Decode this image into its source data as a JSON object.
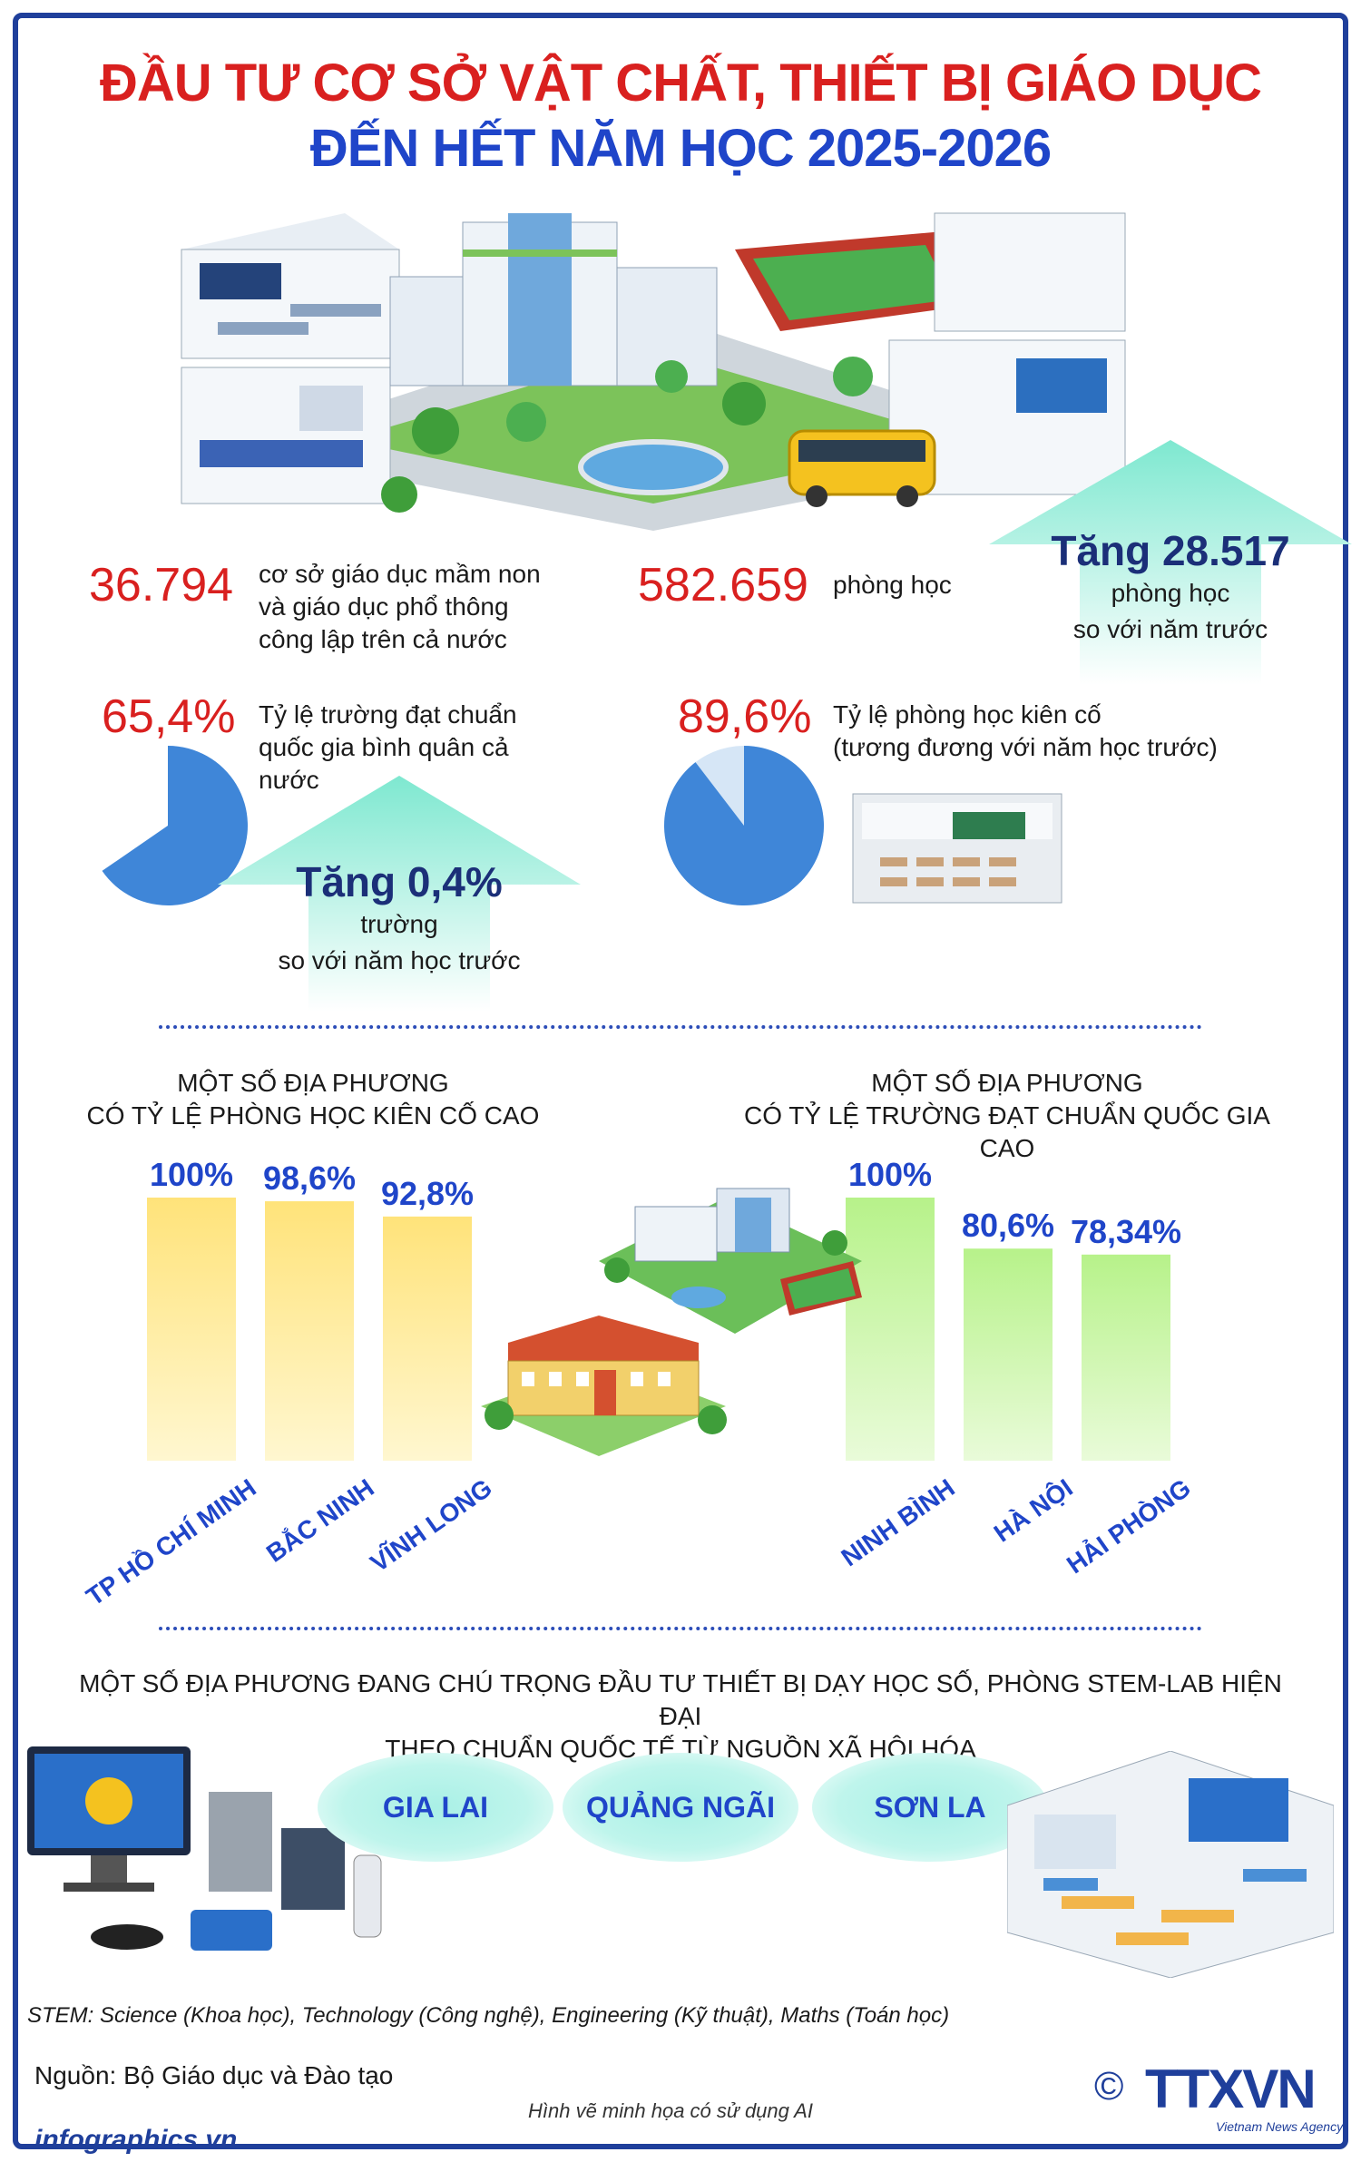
{
  "title": {
    "line1": "ĐẦU TƯ CƠ SỞ VẬT CHẤT, THIẾT BỊ GIÁO DỤC",
    "line2": "ĐẾN HẾT NĂM HỌC 2025-2026"
  },
  "stats": {
    "schools": {
      "value": "36.794",
      "text": [
        "cơ sở giáo dục mầm non",
        "và giáo dục phổ thông",
        "công lập trên cả nước"
      ]
    },
    "rooms": {
      "value": "582.659",
      "text": "phòng học"
    },
    "rooms_increase": {
      "head": "Tăng 28.517",
      "line1": "phòng học",
      "line2": "so với năm trước"
    },
    "standard_rate": {
      "value": "65,4%",
      "fraction": 0.654,
      "text": [
        "Tỷ lệ trường đạt chuẩn",
        "quốc gia bình quân cả",
        "nước"
      ]
    },
    "standard_increase": {
      "head": "Tăng 0,4%",
      "line1": "trường",
      "line2": "so với năm học trước"
    },
    "solid_rate": {
      "value": "89,6%",
      "fraction": 0.896,
      "text": [
        "Tỷ lệ phòng học kiên cố",
        "(tương đương với năm học trước)"
      ]
    }
  },
  "colors": {
    "red": "#d9201f",
    "blue": "#1f45c9",
    "navy": "#1f3f9b",
    "pie": "#3f86d8",
    "arrow": "#9bf0d8"
  },
  "section_solid": {
    "heading": [
      "MỘT SỐ ĐỊA PHƯƠNG",
      "CÓ TỶ LỆ PHÒNG HỌC KIÊN CỐ CAO"
    ],
    "bars": [
      {
        "label": "100%",
        "value": 100,
        "name": "TP HỒ CHÍ MINH"
      },
      {
        "label": "98,6%",
        "value": 98.6,
        "name": "BẮC NINH"
      },
      {
        "label": "92,8%",
        "value": 92.8,
        "name": "VĨNH LONG"
      }
    ]
  },
  "section_standard": {
    "heading": [
      "MỘT SỐ ĐỊA PHƯƠNG",
      "CÓ TỶ LỆ TRƯỜNG ĐẠT CHUẨN QUỐC GIA CAO"
    ],
    "bars": [
      {
        "label": "100%",
        "value": 100,
        "name": "NINH BÌNH"
      },
      {
        "label": "80,6%",
        "value": 80.6,
        "name": "HÀ NỘI"
      },
      {
        "label": "78,34%",
        "value": 78.34,
        "name": "HẢI PHÒNG"
      }
    ]
  },
  "section_stem": {
    "heading": [
      "MỘT SỐ ĐỊA PHƯƠNG ĐANG CHÚ TRỌNG ĐẦU TƯ THIẾT BỊ DẠY HỌC SỐ, PHÒNG STEM-LAB HIỆN ĐẠI",
      "THEO CHUẨN QUỐC TẾ TỪ NGUỒN XÃ HỘI HÓA"
    ],
    "provinces": [
      "GIA LAI",
      "QUẢNG NGÃI",
      "SƠN LA"
    ]
  },
  "footer": {
    "stem_note": "STEM: Science (Khoa học), Technology (Công nghệ), Engineering (Kỹ thuật), Maths (Toán học)",
    "source": "Nguồn: Bộ Giáo dục và Đào tạo",
    "ai_note": "Hình vẽ minh họa có sử dụng AI",
    "site": "infographics.vn",
    "copyright": "©",
    "logo": "TTXVN",
    "logo_sub": "Vietnam News Agency"
  }
}
